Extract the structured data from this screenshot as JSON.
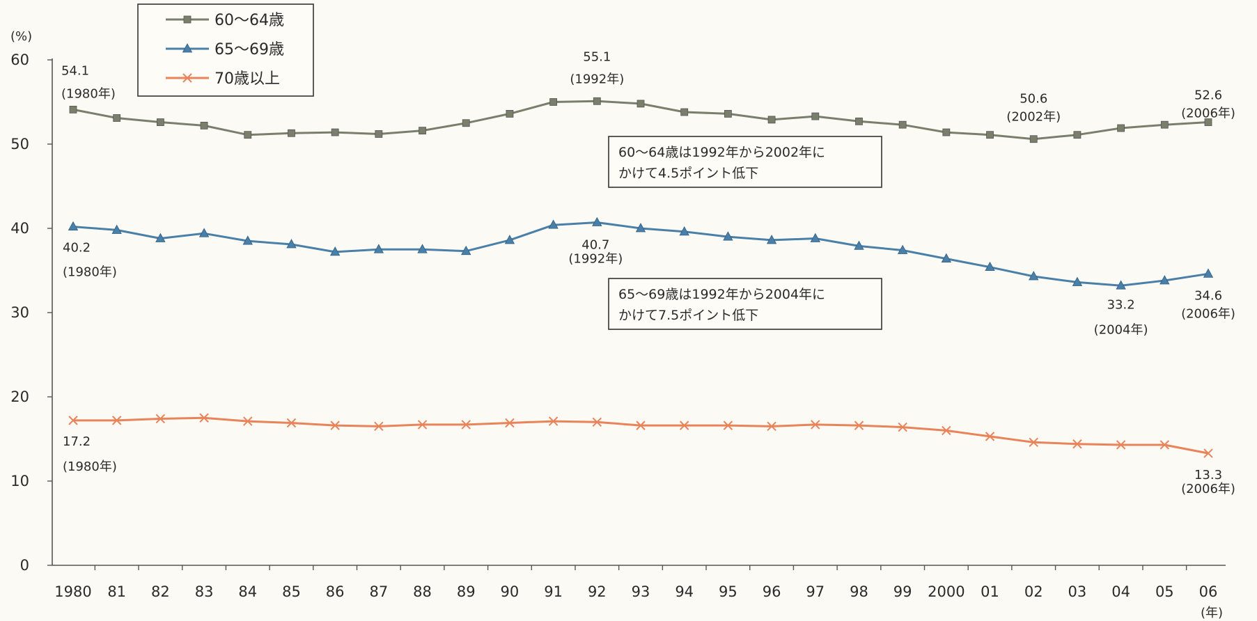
{
  "chart_data": {
    "type": "line",
    "ylabel": "(%)",
    "xlabel": "(年)",
    "ylim": [
      0,
      60
    ],
    "yticks": [
      0,
      10,
      20,
      30,
      40,
      50,
      60
    ],
    "grid": false,
    "legend_position": "top-left",
    "categories": [
      "1980",
      "81",
      "82",
      "83",
      "84",
      "85",
      "86",
      "87",
      "88",
      "89",
      "90",
      "91",
      "92",
      "93",
      "94",
      "95",
      "96",
      "97",
      "98",
      "99",
      "2000",
      "01",
      "02",
      "03",
      "04",
      "05",
      "06"
    ],
    "series": [
      {
        "name": "60〜64歳",
        "color": "#7a7f6c",
        "marker": "square",
        "values": [
          54.1,
          53.1,
          52.6,
          52.2,
          51.1,
          51.3,
          51.4,
          51.2,
          51.6,
          52.5,
          53.6,
          55.0,
          55.1,
          54.8,
          53.8,
          53.6,
          52.9,
          53.3,
          52.7,
          52.3,
          51.4,
          51.1,
          50.6,
          51.1,
          51.9,
          52.3,
          52.6
        ]
      },
      {
        "name": "65〜69歳",
        "color": "#4a7fa8",
        "marker": "triangle",
        "values": [
          40.2,
          39.8,
          38.8,
          39.4,
          38.5,
          38.1,
          37.2,
          37.5,
          37.5,
          37.3,
          38.6,
          40.4,
          40.7,
          40.0,
          39.6,
          39.0,
          38.6,
          38.8,
          37.9,
          37.4,
          36.4,
          35.4,
          34.3,
          33.6,
          33.2,
          33.8,
          34.6
        ]
      },
      {
        "name": "70歳以上",
        "color": "#e8835a",
        "marker": "x",
        "values": [
          17.2,
          17.2,
          17.4,
          17.5,
          17.1,
          16.9,
          16.6,
          16.5,
          16.7,
          16.7,
          16.9,
          17.1,
          17.0,
          16.6,
          16.6,
          16.6,
          16.5,
          16.7,
          16.6,
          16.4,
          16.0,
          15.3,
          14.6,
          14.4,
          14.3,
          14.3,
          13.3
        ]
      }
    ],
    "data_labels": [
      {
        "series": 0,
        "index": 0,
        "lines": [
          "54.1",
          "(1980年)"
        ]
      },
      {
        "series": 0,
        "index": 12,
        "lines": [
          "55.1",
          "(1992年)"
        ]
      },
      {
        "series": 0,
        "index": 22,
        "lines": [
          "50.6",
          "(2002年)"
        ]
      },
      {
        "series": 0,
        "index": 26,
        "lines": [
          "52.6",
          "(2006年)"
        ]
      },
      {
        "series": 1,
        "index": 0,
        "lines": [
          "40.2",
          "(1980年)"
        ]
      },
      {
        "series": 1,
        "index": 12,
        "lines": [
          "40.7",
          "(1992年)"
        ]
      },
      {
        "series": 1,
        "index": 24,
        "lines": [
          "33.2",
          "(2004年)"
        ]
      },
      {
        "series": 1,
        "index": 26,
        "lines": [
          "34.6",
          "(2006年)"
        ]
      },
      {
        "series": 2,
        "index": 0,
        "lines": [
          "17.2",
          "(1980年)"
        ]
      },
      {
        "series": 2,
        "index": 26,
        "lines": [
          "13.3",
          "(2006年)"
        ]
      }
    ],
    "annotations": [
      {
        "lines": [
          "60〜64歳は1992年から2002年に",
          "かけて4.5ポイント低下"
        ]
      },
      {
        "lines": [
          "65〜69歳は1992年から2004年に",
          "かけて7.5ポイント低下"
        ]
      }
    ]
  }
}
